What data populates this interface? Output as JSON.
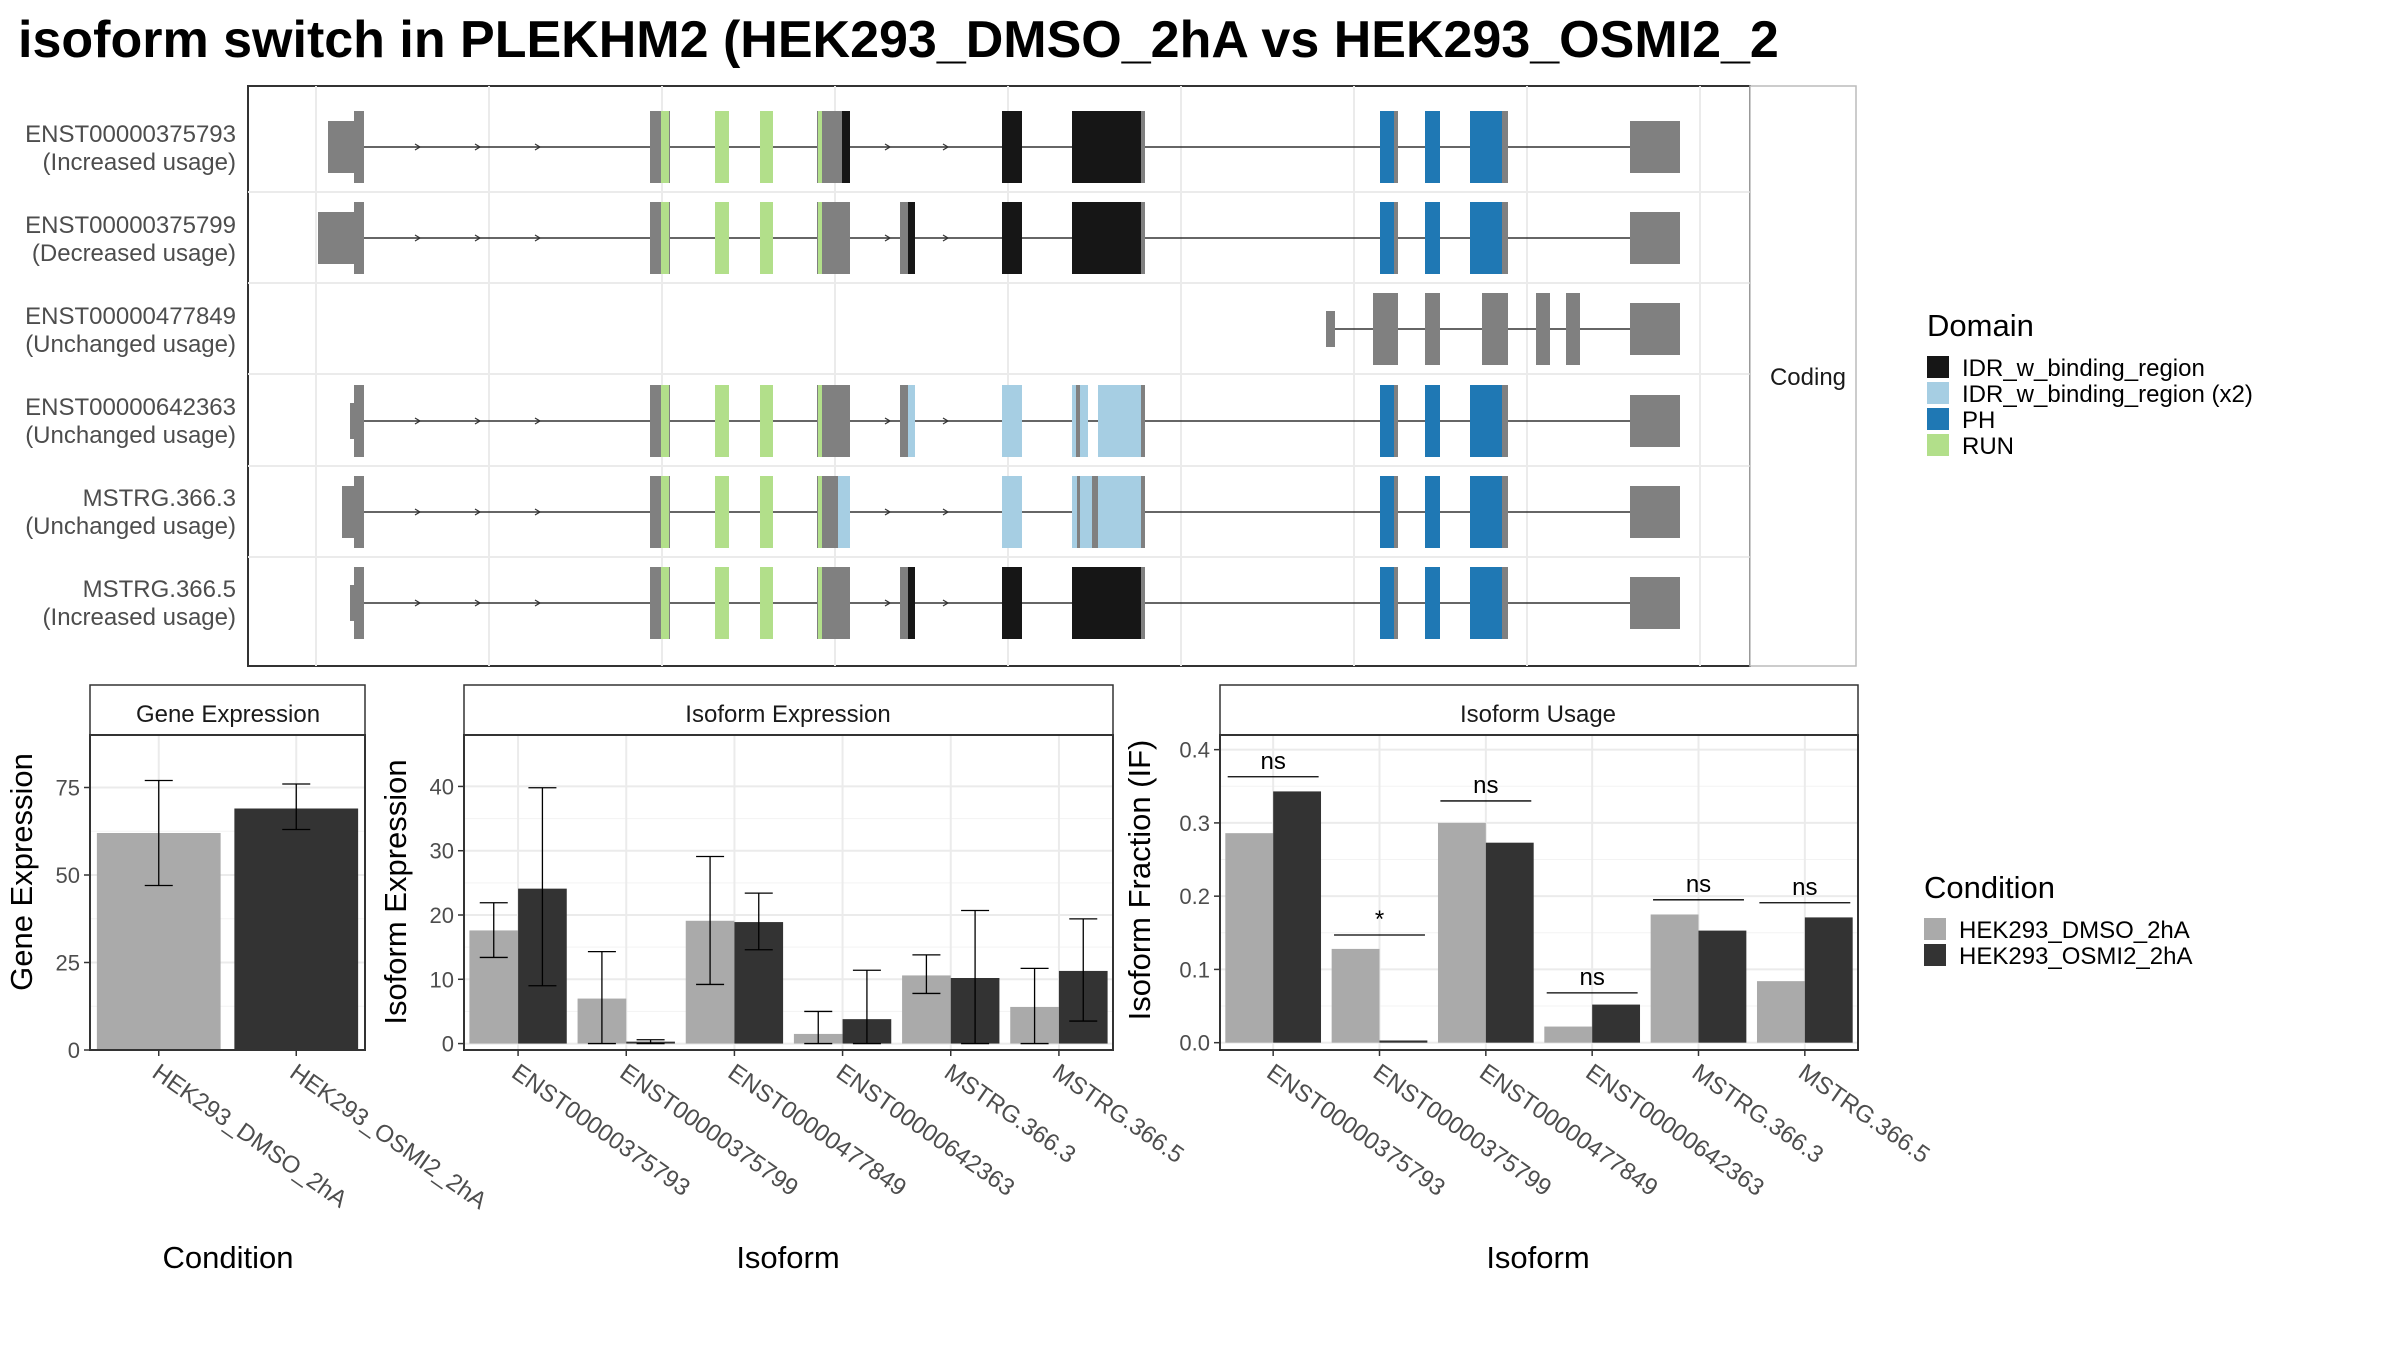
{
  "title": "isoform switch in PLEKHM2 (HEK293_DMSO_2hA vs HEK293_OSMI2_2",
  "colors": {
    "exon": "#808080",
    "IDR_w_binding_region": "#161616",
    "IDR_w_binding_region_x2": "#a6cee3",
    "PH": "#1f78b4",
    "RUN": "#b2df8a",
    "HEK293_DMSO_2hA": "#aaaaaa",
    "HEK293_OSMI2_2hA": "#333333"
  },
  "structure": {
    "strip_label": "Coding",
    "isoforms": [
      {
        "id": "ENST00000375793",
        "usage": "(Increased usage)"
      },
      {
        "id": "ENST00000375799",
        "usage": "(Decreased usage)"
      },
      {
        "id": "ENST00000477849",
        "usage": "(Unchanged usage)"
      },
      {
        "id": "ENST00000642363",
        "usage": "(Unchanged usage)"
      },
      {
        "id": "MSTRG.366.3",
        "usage": "(Unchanged usage)"
      },
      {
        "id": "MSTRG.366.5",
        "usage": "(Increased usage)"
      }
    ]
  },
  "domain_legend": {
    "title": "Domain",
    "items": [
      {
        "label": "IDR_w_binding_region",
        "color": "#161616"
      },
      {
        "label": "IDR_w_binding_region (x2)",
        "color": "#a6cee3"
      },
      {
        "label": "PH",
        "color": "#1f78b4"
      },
      {
        "label": "RUN",
        "color": "#b2df8a"
      }
    ]
  },
  "condition_legend": {
    "title": "Condition",
    "items": [
      {
        "label": "HEK293_DMSO_2hA",
        "color": "#aaaaaa"
      },
      {
        "label": "HEK293_OSMI2_2hA",
        "color": "#333333"
      }
    ]
  },
  "chart_data": [
    {
      "type": "bar",
      "title": "Gene Expression",
      "xlabel": "Condition",
      "ylabel": "Gene Expression",
      "categories": [
        "HEK293_DMSO_2hA",
        "HEK293_OSMI2_2hA"
      ],
      "values": [
        62,
        69
      ],
      "err_low": [
        47,
        63
      ],
      "err_high": [
        77,
        76
      ],
      "yticks": [
        0,
        25,
        50,
        75
      ],
      "ylim": [
        0,
        90
      ]
    },
    {
      "type": "bar",
      "title": "Isoform Expression",
      "xlabel": "Isoform",
      "ylabel": "Isoform Expression",
      "categories": [
        "ENST00000375793",
        "ENST00000375799",
        "ENST00000477849",
        "ENST00000642363",
        "MSTRG.366.3",
        "MSTRG.366.5"
      ],
      "series": [
        {
          "name": "HEK293_DMSO_2hA",
          "values": [
            17.6,
            7.0,
            19.1,
            1.5,
            10.6,
            5.7
          ],
          "err_low": [
            13.4,
            0.0,
            9.2,
            0.0,
            7.8,
            0.0
          ],
          "err_high": [
            21.9,
            14.3,
            29.1,
            5.0,
            13.8,
            11.7
          ]
        },
        {
          "name": "HEK293_OSMI2_2hA",
          "values": [
            24.1,
            0.3,
            18.9,
            3.8,
            10.2,
            11.3
          ],
          "err_low": [
            9.0,
            0.0,
            14.6,
            0.0,
            0.0,
            3.5
          ],
          "err_high": [
            39.8,
            0.6,
            23.4,
            11.4,
            20.7,
            19.4
          ]
        }
      ],
      "yticks": [
        0,
        10,
        20,
        30,
        40
      ],
      "ylim": [
        -1,
        48
      ]
    },
    {
      "type": "bar",
      "title": "Isoform Usage",
      "xlabel": "Isoform",
      "ylabel": "Isoform Fraction (IF)",
      "categories": [
        "ENST00000375793",
        "ENST00000375799",
        "ENST00000477849",
        "ENST00000642363",
        "MSTRG.366.3",
        "MSTRG.366.5"
      ],
      "series": [
        {
          "name": "HEK293_DMSO_2hA",
          "values": [
            0.286,
            0.128,
            0.3,
            0.022,
            0.175,
            0.084
          ]
        },
        {
          "name": "HEK293_OSMI2_2hA",
          "values": [
            0.343,
            0.003,
            0.273,
            0.052,
            0.153,
            0.171
          ]
        }
      ],
      "annotations": [
        "ns",
        "*",
        "ns",
        "ns",
        "ns",
        "ns"
      ],
      "annotation_y": [
        0.363,
        0.147,
        0.33,
        0.068,
        0.195,
        0.191
      ],
      "yticks": [
        "0.0",
        "0.1",
        "0.2",
        "0.3",
        "0.4"
      ],
      "ylim": [
        -0.01,
        0.42
      ]
    }
  ]
}
